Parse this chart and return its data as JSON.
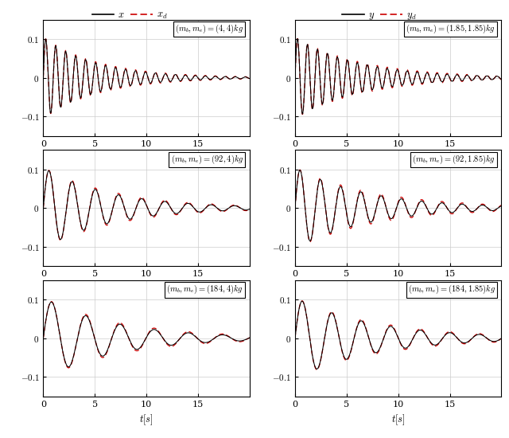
{
  "subplot_titles": [
    [
      "$(m_b, m_e) = (4, 4)kg$",
      "$(m_b, m_e) = (1.85, 1.85)kg$"
    ],
    [
      "$(m_b, m_e) = (92, 4)kg$",
      "$(m_b, m_e) = (92, 1.85)kg$"
    ],
    [
      "$(m_b, m_e) = (184, 4)kg$",
      "$(m_b, m_e) = (184, 1.85)kg$"
    ]
  ],
  "xlabel": "$t[s]$",
  "ylim": [
    -0.15,
    0.15
  ],
  "xlim": [
    0,
    20
  ],
  "color_solid": "#000000",
  "color_dashed": "#cc0000",
  "grid_color": "#cccccc",
  "background_color": "#ffffff",
  "params": [
    {
      "omega": 6.5,
      "zeta": 0.03,
      "amp": 0.105,
      "omega_d_off": 0.0,
      "zeta_d": 0.028,
      "amp_d": 0.105
    },
    {
      "omega": 6.5,
      "zeta": 0.025,
      "amp": 0.105,
      "omega_d_off": 0.0,
      "zeta_d": 0.023,
      "amp_d": 0.105
    },
    {
      "omega": 2.8,
      "zeta": 0.055,
      "amp": 0.105,
      "omega_d_off": 0.0,
      "zeta_d": 0.05,
      "amp_d": 0.105
    },
    {
      "omega": 3.2,
      "zeta": 0.045,
      "amp": 0.105,
      "omega_d_off": 0.0,
      "zeta_d": 0.04,
      "amp_d": 0.105
    },
    {
      "omega": 1.9,
      "zeta": 0.075,
      "amp": 0.105,
      "omega_d_off": 0.0,
      "zeta_d": 0.068,
      "amp_d": 0.105
    },
    {
      "omega": 2.2,
      "zeta": 0.06,
      "amp": 0.105,
      "omega_d_off": 0.0,
      "zeta_d": 0.055,
      "amp_d": 0.105
    }
  ]
}
